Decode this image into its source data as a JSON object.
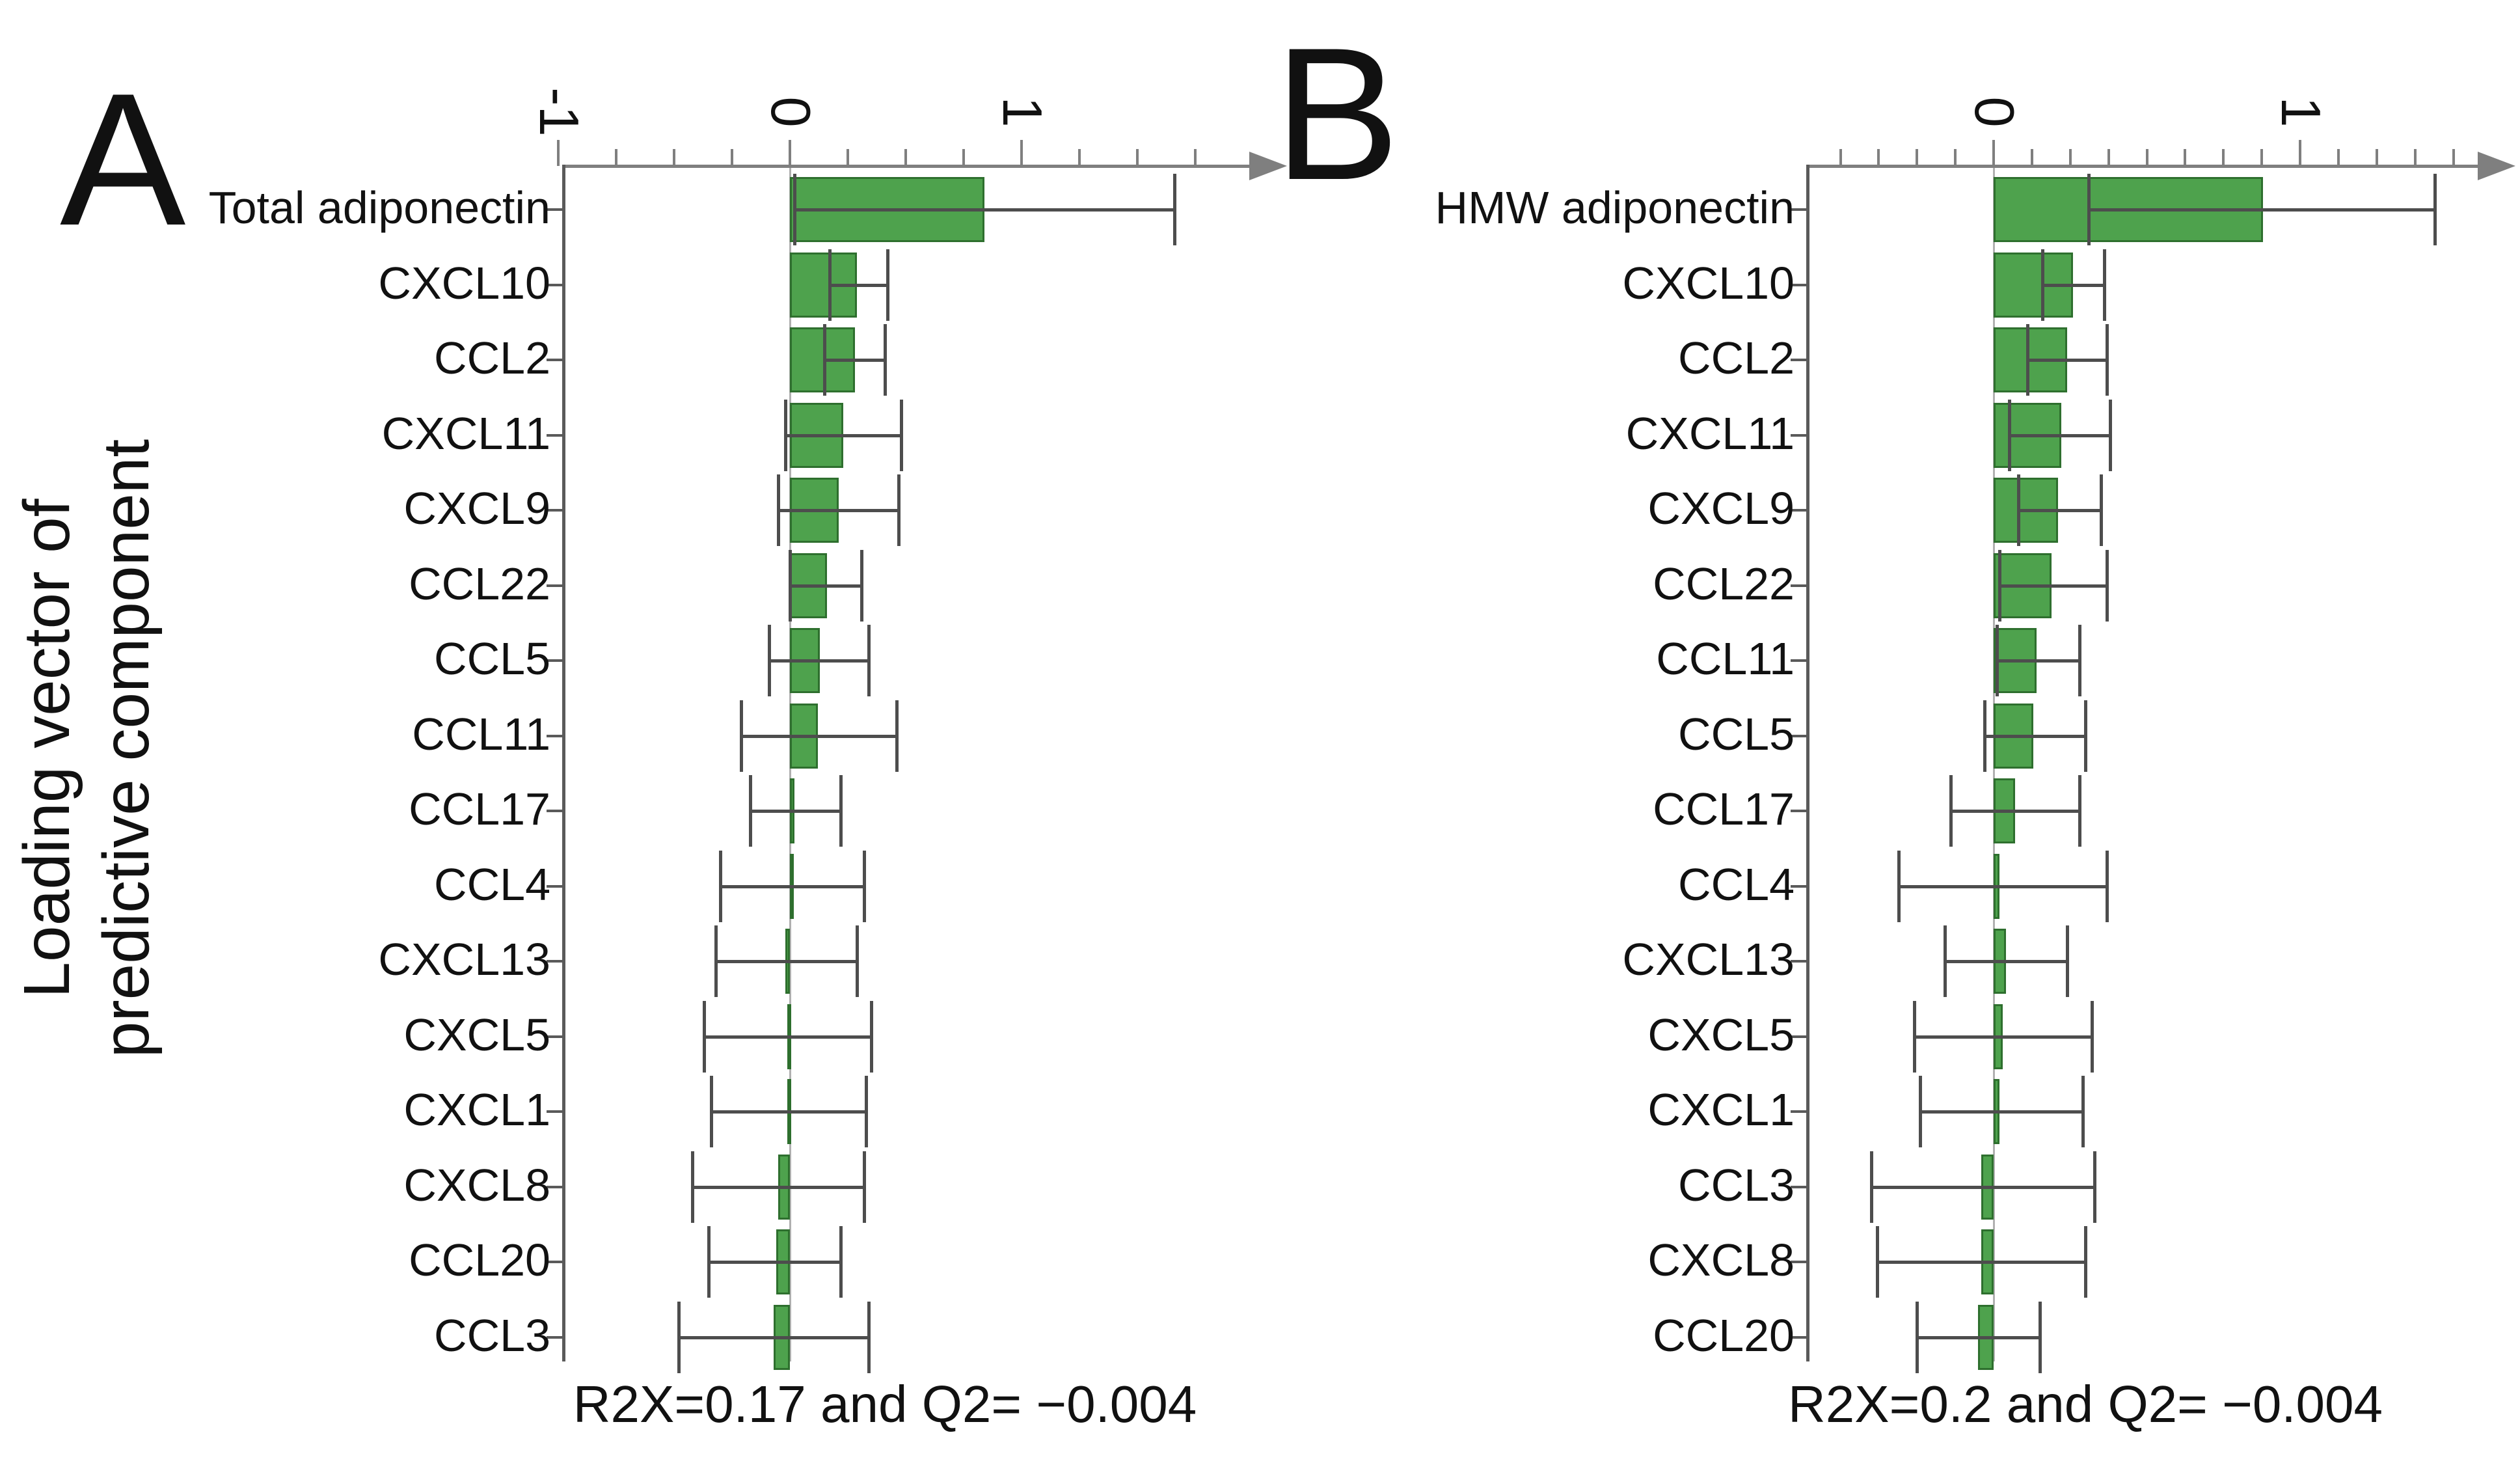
{
  "figure": {
    "background": "#ffffff",
    "y_axis_title": [
      "Loading vector of",
      "predictive component"
    ],
    "colors": {
      "bar_fill": "#4ea24d",
      "bar_border": "#2e6f2e",
      "error_bar": "#4d4d4d",
      "top_axis": "#7f7f7f",
      "y_axis": "#5a5a5a",
      "zero_line": "#b0b0b0",
      "text": "#111111"
    }
  },
  "chart_data": [
    {
      "type": "bar",
      "orientation": "horizontal",
      "panel_label": "A",
      "caption": "R2X=0.17 and Q2= −0.004",
      "ylabel": "Loading vector of predictive component",
      "xlim": [
        -1,
        2.05
      ],
      "minor_tick_step": 0.25,
      "x_tick_labels": [
        {
          "value": -1,
          "label": "-1"
        },
        {
          "value": 0,
          "label": "0"
        },
        {
          "value": 1,
          "label": "1"
        }
      ],
      "categories": [
        "Total adiponectin",
        "CXCL10",
        "CCL2",
        "CXCL11",
        "CXCL9",
        "CCL22",
        "CCL5",
        "CCL11",
        "CCL17",
        "CCL4",
        "CXCL13",
        "CXCL5",
        "CXCL1",
        "CXCL8",
        "CCL20",
        "CCL3"
      ],
      "values": [
        0.84,
        0.29,
        0.28,
        0.23,
        0.21,
        0.16,
        0.13,
        0.12,
        0.02,
        0.01,
        -0.02,
        -0.01,
        -0.01,
        -0.05,
        -0.06,
        -0.07
      ],
      "error_low": [
        0.02,
        0.17,
        0.15,
        -0.02,
        -0.05,
        0.0,
        -0.09,
        -0.21,
        -0.17,
        -0.3,
        -0.32,
        -0.37,
        -0.34,
        -0.42,
        -0.35,
        -0.48
      ],
      "error_high": [
        1.66,
        0.42,
        0.41,
        0.48,
        0.47,
        0.31,
        0.34,
        0.46,
        0.22,
        0.32,
        0.29,
        0.35,
        0.33,
        0.32,
        0.22,
        0.34
      ]
    },
    {
      "type": "bar",
      "orientation": "horizontal",
      "panel_label": "B",
      "caption": "R2X=0.2 and Q2= −0.004",
      "ylabel": "Loading vector of predictive component",
      "xlim": [
        -0.61,
        1.7
      ],
      "minor_tick_step": 0.125,
      "x_tick_labels": [
        {
          "value": 0,
          "label": "0"
        },
        {
          "value": 1,
          "label": "1"
        }
      ],
      "categories": [
        "HMW adiponectin",
        "CXCL10",
        "CCL2",
        "CXCL11",
        "CXCL9",
        "CCL22",
        "CCL11",
        "CCL5",
        "CCL17",
        "CCL4",
        "CXCL13",
        "CXCL5",
        "CXCL1",
        "CCL3",
        "CXCL8",
        "CCL20"
      ],
      "values": [
        0.88,
        0.26,
        0.24,
        0.22,
        0.21,
        0.19,
        0.14,
        0.13,
        0.07,
        0.02,
        0.04,
        0.03,
        0.02,
        -0.04,
        -0.04,
        -0.05
      ],
      "error_low": [
        0.31,
        0.16,
        0.11,
        0.05,
        0.08,
        0.02,
        0.01,
        -0.03,
        -0.14,
        -0.31,
        -0.16,
        -0.26,
        -0.24,
        -0.4,
        -0.38,
        -0.25
      ],
      "error_high": [
        1.44,
        0.36,
        0.37,
        0.38,
        0.35,
        0.37,
        0.28,
        0.3,
        0.28,
        0.37,
        0.24,
        0.32,
        0.29,
        0.33,
        0.3,
        0.15
      ]
    }
  ]
}
